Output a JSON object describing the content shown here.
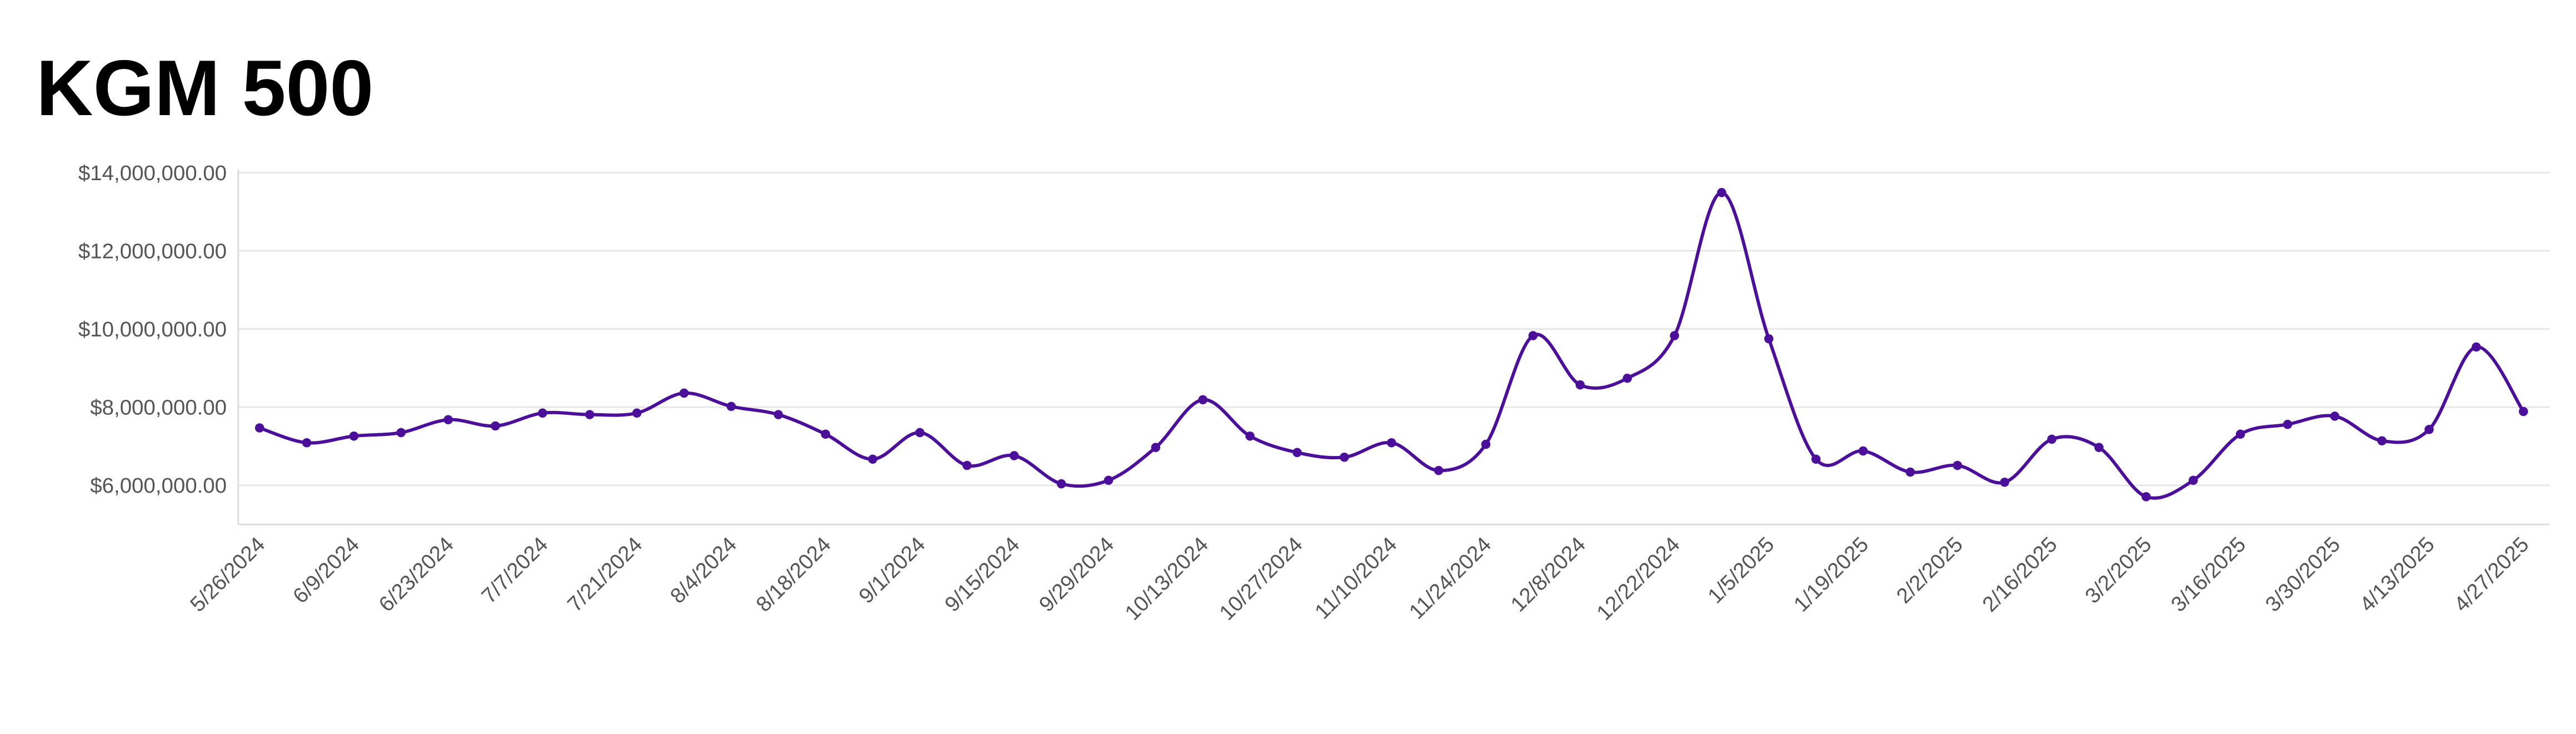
{
  "chart_data": {
    "type": "line",
    "title": "KGM 500",
    "categories": [
      "5/26/2024",
      null,
      "6/9/2024",
      null,
      "6/23/2024",
      null,
      "7/7/2024",
      null,
      "7/21/2024",
      null,
      "8/4/2024",
      null,
      "8/18/2024",
      null,
      "9/1/2024",
      null,
      "9/15/2024",
      null,
      "9/29/2024",
      null,
      "10/13/2024",
      null,
      "10/27/2024",
      null,
      "11/10/2024",
      null,
      "11/24/2024",
      null,
      "12/8/2024",
      null,
      "12/22/2024",
      null,
      "1/5/2025",
      null,
      "1/19/2025",
      null,
      "2/2/2025",
      null,
      "2/16/2025",
      null,
      "3/2/2025",
      null,
      "3/16/2025",
      null,
      "3/30/2025",
      null,
      "4/13/2025",
      null,
      "4/27/2025"
    ],
    "series": [
      {
        "name": "KGM 500",
        "color": "#4b0f99",
        "values": [
          7470000,
          7090000,
          7260000,
          7350000,
          7680000,
          7520000,
          7850000,
          7810000,
          7850000,
          8360000,
          8020000,
          7810000,
          7310000,
          6670000,
          7350000,
          6510000,
          6760000,
          6040000,
          6130000,
          6970000,
          8190000,
          7260000,
          6840000,
          6720000,
          7090000,
          6380000,
          7050000,
          9830000,
          8570000,
          8740000,
          9830000,
          13490000,
          9750000,
          6670000,
          6880000,
          6340000,
          6510000,
          6080000,
          7180000,
          6970000,
          5710000,
          6130000,
          7310000,
          7560000,
          7770000,
          7140000,
          7430000,
          9540000,
          7890000
        ]
      }
    ],
    "ylim": [
      5000000,
      14000000
    ],
    "yticks": [
      {
        "value": 6000000,
        "label": "$6,000,000.00"
      },
      {
        "value": 8000000,
        "label": "$8,000,000.00"
      },
      {
        "value": 10000000,
        "label": "$10,000,000.00"
      },
      {
        "value": 12000000,
        "label": "$12,000,000.00"
      },
      {
        "value": 14000000,
        "label": "$14,000,000.00"
      }
    ],
    "grid": true
  }
}
